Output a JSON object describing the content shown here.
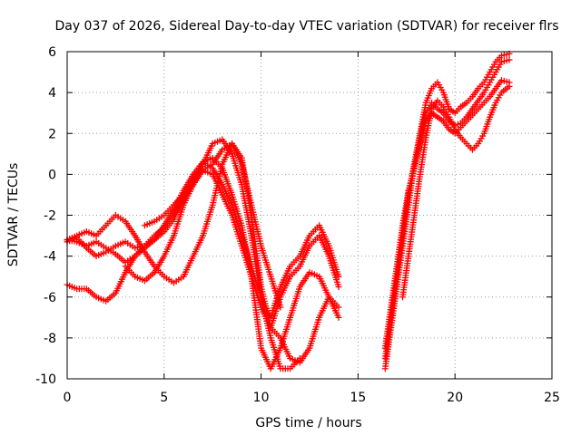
{
  "chart_data": {
    "type": "scatter",
    "title": "Day 037 of 2026, Sidereal Day-to-day VTEC variation (SDTVAR) for receiver flrs",
    "xlabel": "GPS time / hours",
    "ylabel": "SDTVAR / TECUs",
    "xlim": [
      0,
      25
    ],
    "ylim": [
      -10,
      6
    ],
    "xticks": [
      "0",
      "5",
      "10",
      "15",
      "20",
      "25"
    ],
    "yticks": [
      "-10",
      "-8",
      "-6",
      "-4",
      "-2",
      "0",
      "2",
      "4",
      "6"
    ],
    "grid": true,
    "legend": "none",
    "marker": "+",
    "color": "#ff0000",
    "series": [
      {
        "x": [
          0.0,
          0.5,
          1.0,
          1.5,
          2.0,
          2.5,
          3.0,
          3.5,
          4.0,
          4.5,
          5.0,
          5.5,
          6.0,
          6.5,
          7.0,
          7.5,
          8.0,
          8.5,
          9.0,
          9.5,
          10.0,
          10.5,
          11.0,
          11.5,
          12.0,
          12.5,
          13.0,
          13.5,
          14.0
        ],
        "y": [
          -3.3,
          -3.1,
          -3.6,
          -4.0,
          -3.8,
          -3.5,
          -3.3,
          -3.6,
          -3.5,
          -3.0,
          -2.6,
          -2.0,
          -1.2,
          -0.5,
          0.2,
          0.0,
          -1.0,
          -2.0,
          -3.5,
          -5.0,
          -6.5,
          -7.5,
          -6.0,
          -5.0,
          -4.5,
          -3.5,
          -3.0,
          -4.0,
          -5.5
        ]
      },
      {
        "x": [
          0.0,
          0.5,
          1.0,
          1.5,
          2.0,
          2.5,
          3.0,
          3.5,
          4.0,
          4.5,
          5.0,
          5.5,
          6.0,
          6.5,
          7.0,
          7.5,
          8.0,
          8.5,
          9.0,
          9.5,
          10.0,
          10.5,
          11.0,
          11.5,
          12.0,
          12.5,
          13.0,
          13.5,
          14.0
        ],
        "y": [
          -3.2,
          -3.3,
          -3.5,
          -3.3,
          -3.6,
          -3.9,
          -4.3,
          -4.0,
          -3.5,
          -3.2,
          -2.5,
          -1.7,
          -0.8,
          0.0,
          0.6,
          0.3,
          -0.5,
          -1.5,
          -3.0,
          -4.5,
          -6.0,
          -7.0,
          -5.5,
          -4.5,
          -4.0,
          -3.0,
          -2.5,
          -3.5,
          -5.0
        ]
      },
      {
        "x": [
          0.0,
          0.5,
          1.0,
          1.5,
          2.0,
          2.5,
          3.0,
          3.5,
          4.0,
          4.5,
          5.0,
          5.5,
          6.0,
          6.5,
          7.0,
          7.5,
          8.0,
          8.5,
          9.0,
          9.5,
          10.0,
          10.5,
          11.0,
          11.5,
          12.0,
          12.5,
          13.0,
          13.5,
          14.0
        ],
        "y": [
          -5.4,
          -5.6,
          -5.6,
          -6.0,
          -6.2,
          -5.8,
          -4.8,
          -4.0,
          -3.6,
          -3.2,
          -2.8,
          -2.2,
          -1.0,
          -0.2,
          0.6,
          0.8,
          0.3,
          -1.0,
          -2.5,
          -5.0,
          -8.5,
          -9.5,
          -8.5,
          -7.0,
          -5.5,
          -4.8,
          -5.0,
          -6.0,
          -7.0
        ]
      },
      {
        "x": [
          0.0,
          0.5,
          1.0,
          1.5,
          2.0,
          2.5,
          3.0,
          3.5,
          4.0,
          4.5,
          5.0,
          5.5,
          6.0,
          6.5,
          7.0,
          7.5,
          8.0,
          8.5,
          9.0,
          9.5,
          10.0,
          10.5,
          11.0,
          11.5,
          12.0,
          12.5,
          13.0,
          13.5,
          14.0
        ],
        "y": [
          -3.2,
          -3.0,
          -2.8,
          -3.0,
          -2.5,
          -2.0,
          -2.3,
          -3.0,
          -3.8,
          -4.5,
          -5.0,
          -5.3,
          -5.0,
          -4.0,
          -3.0,
          -1.5,
          0.5,
          1.5,
          0.8,
          -2.0,
          -5.5,
          -7.5,
          -8.0,
          -9.0,
          -9.2,
          -8.5,
          -7.0,
          -6.0,
          -6.5
        ]
      },
      {
        "x": [
          3.0,
          3.5,
          4.0,
          4.5,
          5.0,
          5.5,
          6.0,
          6.5,
          7.0,
          7.5,
          8.0,
          8.5,
          9.0,
          9.5,
          10.0,
          10.5,
          11.0,
          11.5,
          12.0
        ],
        "y": [
          -4.5,
          -5.0,
          -5.2,
          -4.8,
          -4.0,
          -3.0,
          -1.5,
          -0.5,
          0.5,
          1.5,
          1.7,
          1.0,
          -0.5,
          -3.0,
          -6.0,
          -8.0,
          -9.5,
          -9.5,
          -9.0
        ]
      },
      {
        "x": [
          4.0,
          4.5,
          5.0,
          5.5,
          6.0,
          6.5,
          7.0,
          7.5,
          8.0,
          8.5,
          9.0,
          9.5,
          10.0,
          10.5,
          11.0
        ],
        "y": [
          -2.5,
          -2.3,
          -2.0,
          -1.5,
          -1.0,
          -0.5,
          0.2,
          0.5,
          1.2,
          1.5,
          0.5,
          -1.5,
          -3.5,
          -5.0,
          -6.5
        ]
      },
      {
        "x": [
          16.4,
          16.7,
          17.0,
          17.3,
          17.6,
          17.9,
          18.2,
          18.5,
          18.8,
          19.1,
          19.4,
          19.7,
          20.0,
          20.3,
          20.6,
          20.9,
          21.2,
          21.5,
          21.8,
          22.1,
          22.4,
          22.8
        ],
        "y": [
          -9.5,
          -7.5,
          -5.5,
          -3.5,
          -1.5,
          0.5,
          2.0,
          3.5,
          4.2,
          4.5,
          4.0,
          3.2,
          3.0,
          3.3,
          3.5,
          3.8,
          4.2,
          4.5,
          5.0,
          5.5,
          5.8,
          5.9
        ]
      },
      {
        "x": [
          16.4,
          16.7,
          17.0,
          17.3,
          17.6,
          17.9,
          18.2,
          18.5,
          18.8,
          19.1,
          19.4,
          19.7,
          20.0,
          20.3,
          20.6,
          20.9,
          21.2,
          21.5,
          21.8,
          22.1,
          22.4,
          22.8
        ],
        "y": [
          -9.0,
          -7.0,
          -5.0,
          -3.0,
          -1.0,
          0.5,
          1.8,
          3.0,
          3.5,
          3.2,
          3.0,
          2.6,
          2.4,
          2.5,
          2.8,
          3.2,
          3.6,
          4.0,
          4.5,
          5.0,
          5.5,
          5.6
        ]
      },
      {
        "x": [
          16.4,
          16.7,
          17.0,
          17.3,
          17.6,
          17.9,
          18.2,
          18.5,
          18.8,
          19.1,
          19.4,
          19.7,
          20.0,
          20.3,
          20.6,
          20.9,
          21.2,
          21.5,
          21.8,
          22.1,
          22.4,
          22.8
        ],
        "y": [
          -8.5,
          -6.5,
          -4.5,
          -2.5,
          -0.8,
          0.3,
          1.5,
          2.6,
          3.0,
          2.8,
          2.6,
          2.2,
          2.0,
          2.3,
          2.6,
          2.9,
          3.2,
          3.5,
          3.8,
          4.2,
          4.6,
          4.5
        ]
      },
      {
        "x": [
          17.3,
          17.6,
          17.9,
          18.2,
          18.5,
          18.8,
          19.1,
          19.4,
          19.7,
          20.0,
          20.3,
          20.6,
          20.9,
          21.2,
          21.5,
          21.8,
          22.1,
          22.4,
          22.8
        ],
        "y": [
          -6.0,
          -4.0,
          -2.0,
          0.0,
          1.8,
          3.2,
          3.6,
          3.3,
          2.8,
          2.2,
          1.8,
          1.5,
          1.2,
          1.5,
          2.0,
          2.8,
          3.5,
          4.0,
          4.3
        ]
      }
    ]
  }
}
